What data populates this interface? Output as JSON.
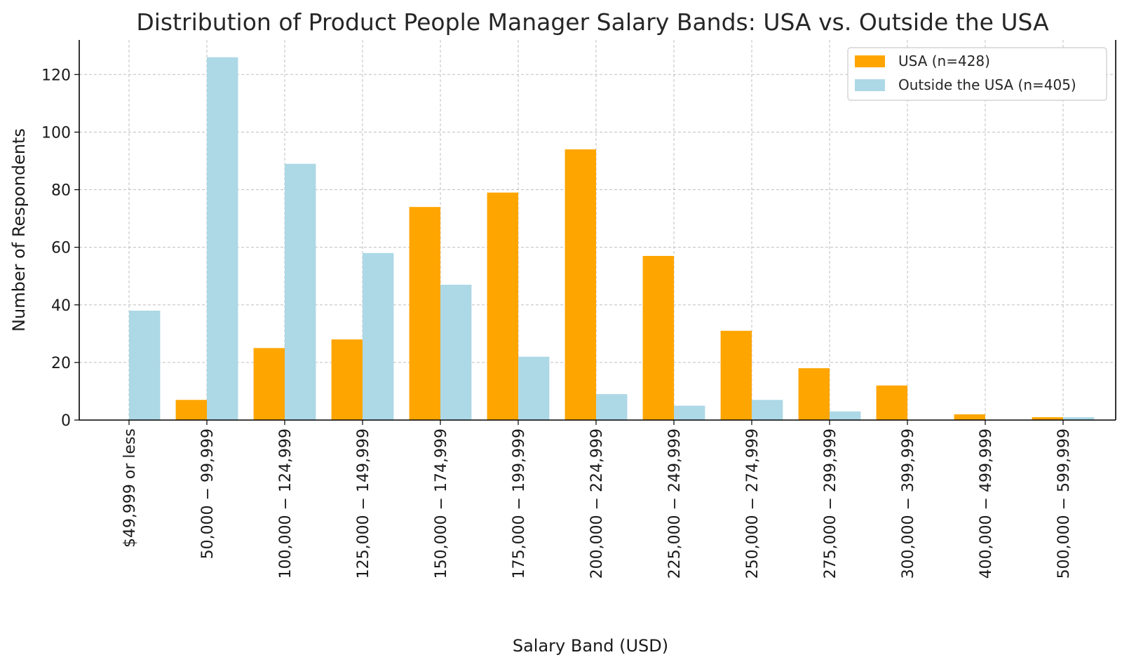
{
  "chart_data": {
    "type": "bar",
    "title": "Distribution of Product People Manager Salary Bands: USA vs. Outside the USA",
    "xlabel": "Salary Band (USD)",
    "ylabel": "Number of Respondents",
    "categories": [
      "$49,999 or less",
      "50,000 − 99,999",
      "100,000 − 124,999",
      "125,000 − 149,999",
      "150,000 − 174,999",
      "175,000 − 199,999",
      "200,000 − 224,999",
      "225,000 − 249,999",
      "250,000 − 274,999",
      "275,000 − 299,999",
      "300,000 − 399,999",
      "400,000 − 499,999",
      "500,000 − 599,999"
    ],
    "series": [
      {
        "name": "USA (n=428)",
        "color": "#FFA500",
        "values": [
          0,
          7,
          25,
          28,
          74,
          79,
          94,
          57,
          31,
          18,
          12,
          2,
          1
        ]
      },
      {
        "name": "Outside the USA (n=405)",
        "color": "#ADD8E6",
        "values": [
          38,
          126,
          89,
          58,
          47,
          22,
          9,
          5,
          7,
          3,
          0,
          0,
          1
        ]
      }
    ],
    "ylim": [
      0,
      132
    ],
    "yticks": [
      0,
      20,
      40,
      60,
      80,
      100,
      120
    ],
    "grid": true,
    "legend_position": "top-right"
  }
}
